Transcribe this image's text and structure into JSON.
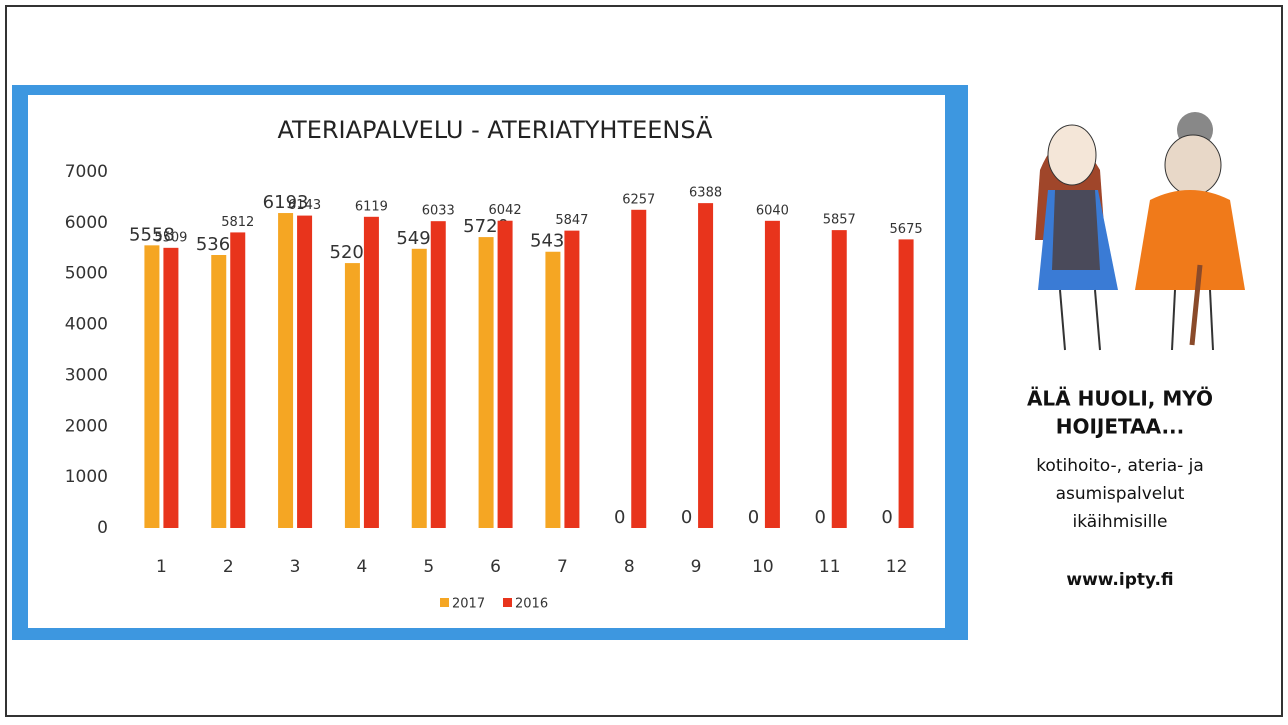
{
  "chart_data": {
    "type": "bar",
    "title": "ATERIAPALVELU - ATERIATYHTEENSÄ",
    "categories": [
      "1",
      "2",
      "3",
      "4",
      "5",
      "6",
      "7",
      "8",
      "9",
      "10",
      "11",
      "12"
    ],
    "series": [
      {
        "name": "2017",
        "color": "#f5a623",
        "values": [
          5558,
          5368,
          6193,
          5209,
          5490,
          5720,
          5432,
          0,
          0,
          0,
          0,
          0
        ]
      },
      {
        "name": "2016",
        "color": "#e8341c",
        "values": [
          5509,
          5812,
          6143,
          6119,
          6033,
          6042,
          5847,
          6257,
          6388,
          6040,
          5857,
          5675
        ]
      }
    ],
    "ylim": [
      0,
      7000
    ],
    "yticks": [
      0,
      1000,
      2000,
      3000,
      4000,
      5000,
      6000,
      7000
    ],
    "grid": false,
    "legend": "bottom"
  },
  "side_panel": {
    "headline": [
      "ÄLÄ HUOLI, MYÖ",
      "HOIJETAA..."
    ],
    "text": [
      "kotihoito-, ateria- ja",
      "asumispalvelut",
      "ikäihmisille"
    ],
    "url": "www.ipty.fi"
  }
}
